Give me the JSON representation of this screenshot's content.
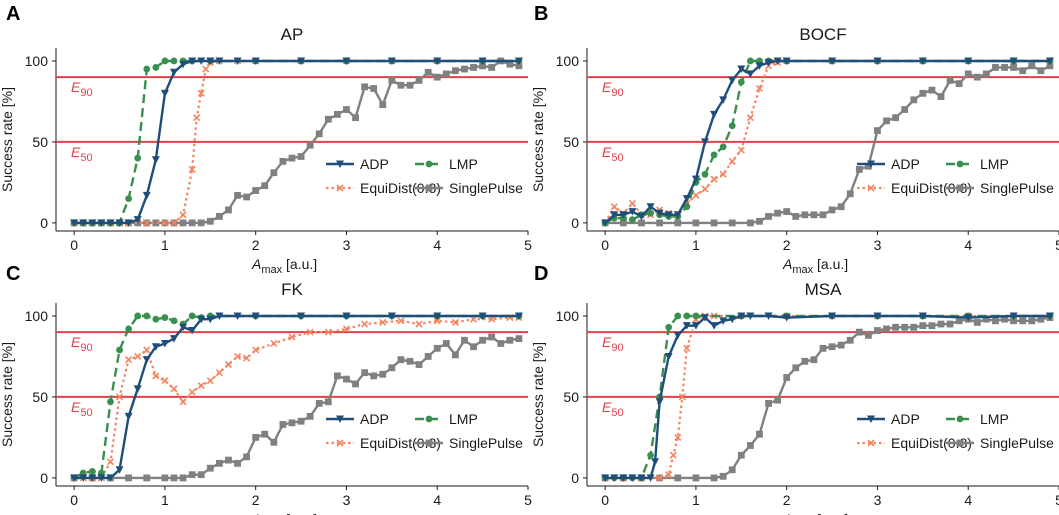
{
  "colors": {
    "ADP": "#1f4e79",
    "LMP": "#3a8f4f",
    "EquiDist": "#f4845f",
    "SinglePulse": "#808080",
    "reference": "#e3404a",
    "axis": "#1a1a1a"
  },
  "axes": {
    "xlabel_main": "A",
    "xlabel_sub": "max",
    "xlabel_unit": " [a.u.]",
    "ylabel": "Success rate [%]",
    "xticks": [
      "0",
      "1",
      "2",
      "3",
      "4",
      "5"
    ],
    "yticks": [
      "0",
      "50",
      "100"
    ]
  },
  "reference_lines": [
    {
      "main": "E",
      "sub": "90",
      "value": 90
    },
    {
      "main": "E",
      "sub": "50",
      "value": 50
    }
  ],
  "legend": [
    {
      "key": "ADP",
      "label": "ADP"
    },
    {
      "key": "LMP",
      "label": "LMP"
    },
    {
      "key": "EquiDist",
      "label": "EquiDist(0.8)"
    },
    {
      "key": "SinglePulse",
      "label": "SinglePulse"
    }
  ],
  "chart_data": [
    {
      "type": "line",
      "letter": "A",
      "title": "AP",
      "xlabel": "A_max [a.u.]",
      "ylabel": "Success rate [%]",
      "xlim": [
        -0.2,
        5.0
      ],
      "ylim": [
        -5,
        108
      ],
      "series": [
        {
          "name": "ADP",
          "x": [
            0,
            0.1,
            0.2,
            0.3,
            0.4,
            0.5,
            0.6,
            0.7,
            0.8,
            0.9,
            1.0,
            1.1,
            1.2,
            1.3,
            1.4,
            1.5,
            1.6,
            1.8,
            2.0,
            2.5,
            3.0,
            3.5,
            4.0,
            4.5,
            4.9
          ],
          "y": [
            0,
            0,
            0,
            0,
            0,
            0,
            0,
            2,
            17,
            39,
            80,
            93,
            98,
            100,
            100,
            100,
            100,
            100,
            100,
            100,
            100,
            100,
            100,
            100,
            100
          ]
        },
        {
          "name": "LMP",
          "x": [
            0,
            0.1,
            0.2,
            0.3,
            0.4,
            0.5,
            0.6,
            0.7,
            0.8,
            0.9,
            1.0,
            1.1,
            1.2,
            1.3,
            1.5,
            2.0,
            2.5,
            3.0,
            3.5,
            4.0,
            4.5,
            4.9
          ],
          "y": [
            0,
            0,
            0,
            0,
            0,
            0,
            15,
            40,
            95,
            96,
            100,
            100,
            100,
            100,
            100,
            100,
            100,
            100,
            100,
            100,
            100,
            100
          ]
        },
        {
          "name": "EquiDist(0.8)",
          "x": [
            0,
            0.2,
            0.4,
            0.6,
            0.8,
            1.0,
            1.1,
            1.2,
            1.3,
            1.35,
            1.4,
            1.45,
            1.5,
            1.6,
            1.8,
            2.0,
            2.5,
            3.0,
            3.5,
            4.0,
            4.5,
            4.9
          ],
          "y": [
            0,
            0,
            0,
            0,
            0,
            0,
            0,
            5,
            33,
            65,
            80,
            95,
            99,
            100,
            100,
            100,
            100,
            100,
            100,
            100,
            100,
            100
          ]
        },
        {
          "name": "SinglePulse",
          "x": [
            0,
            0.1,
            0.2,
            0.3,
            0.4,
            0.5,
            0.6,
            0.7,
            0.8,
            0.9,
            1.0,
            1.1,
            1.2,
            1.3,
            1.4,
            1.5,
            1.6,
            1.7,
            1.8,
            1.9,
            2.0,
            2.1,
            2.2,
            2.3,
            2.4,
            2.5,
            2.6,
            2.7,
            2.8,
            2.9,
            3.0,
            3.1,
            3.2,
            3.3,
            3.4,
            3.5,
            3.6,
            3.7,
            3.8,
            3.9,
            4.0,
            4.1,
            4.2,
            4.3,
            4.4,
            4.5,
            4.6,
            4.7,
            4.8,
            4.9
          ],
          "y": [
            0,
            0,
            0,
            0,
            0,
            0,
            0,
            0,
            0,
            0,
            0,
            0,
            0,
            0,
            0,
            1,
            4,
            8,
            17,
            16,
            20,
            23,
            31,
            38,
            40,
            41,
            48,
            55,
            64,
            67,
            70,
            65,
            84,
            83,
            73,
            88,
            85,
            85,
            88,
            93,
            90,
            92,
            94,
            95,
            96,
            97,
            96,
            100,
            98,
            97
          ]
        }
      ]
    },
    {
      "type": "line",
      "letter": "B",
      "title": "BOCF",
      "xlabel": "A_max [a.u.]",
      "ylabel": "Success rate [%]",
      "xlim": [
        -0.2,
        5.0
      ],
      "ylim": [
        -5,
        108
      ],
      "series": [
        {
          "name": "ADP",
          "x": [
            0,
            0.1,
            0.2,
            0.3,
            0.4,
            0.5,
            0.6,
            0.7,
            0.8,
            0.9,
            1.0,
            1.1,
            1.2,
            1.3,
            1.4,
            1.5,
            1.6,
            1.7,
            1.8,
            1.9,
            2.0,
            2.5,
            3.0,
            3.5,
            4.0,
            4.5,
            4.9
          ],
          "y": [
            0,
            5,
            5,
            7,
            4,
            10,
            6,
            5,
            5,
            15,
            27,
            50,
            67,
            76,
            88,
            95,
            92,
            97,
            99,
            100,
            100,
            100,
            100,
            100,
            100,
            100,
            100
          ]
        },
        {
          "name": "LMP",
          "x": [
            0,
            0.1,
            0.2,
            0.3,
            0.4,
            0.5,
            0.6,
            0.7,
            0.8,
            0.9,
            1.0,
            1.1,
            1.2,
            1.3,
            1.4,
            1.5,
            1.6,
            1.7,
            1.8,
            2.0,
            2.5,
            3.0,
            3.5,
            4.0,
            4.5,
            4.9
          ],
          "y": [
            0,
            3,
            3,
            2,
            5,
            6,
            5,
            4,
            4,
            10,
            25,
            30,
            42,
            47,
            60,
            87,
            100,
            100,
            100,
            100,
            100,
            100,
            100,
            100,
            100,
            100
          ]
        },
        {
          "name": "EquiDist(0.8)",
          "x": [
            0,
            0.1,
            0.2,
            0.3,
            0.4,
            0.5,
            0.6,
            0.7,
            0.8,
            0.9,
            1.0,
            1.1,
            1.2,
            1.3,
            1.4,
            1.5,
            1.6,
            1.7,
            1.8,
            1.9,
            2.0,
            2.5,
            3.0,
            3.5,
            4.0,
            4.5,
            4.9
          ],
          "y": [
            0,
            10,
            6,
            12,
            5,
            5,
            8,
            6,
            5,
            12,
            17,
            21,
            27,
            30,
            38,
            45,
            65,
            83,
            97,
            99,
            100,
            100,
            100,
            100,
            100,
            100,
            100
          ]
        },
        {
          "name": "SinglePulse",
          "x": [
            0,
            0.2,
            0.4,
            0.6,
            0.8,
            1.0,
            1.2,
            1.4,
            1.6,
            1.7,
            1.8,
            1.9,
            2.0,
            2.1,
            2.2,
            2.3,
            2.4,
            2.5,
            2.6,
            2.7,
            2.8,
            2.9,
            3.0,
            3.1,
            3.2,
            3.3,
            3.4,
            3.5,
            3.6,
            3.7,
            3.8,
            3.9,
            4.0,
            4.1,
            4.2,
            4.3,
            4.4,
            4.5,
            4.6,
            4.7,
            4.8,
            4.9
          ],
          "y": [
            0,
            0,
            0,
            0,
            0,
            0,
            0,
            0,
            0,
            1,
            4,
            6,
            7,
            4,
            5,
            5,
            5,
            8,
            10,
            18,
            33,
            35,
            57,
            63,
            65,
            70,
            76,
            80,
            82,
            78,
            88,
            86,
            92,
            90,
            92,
            96,
            96,
            96,
            94,
            97,
            94,
            97
          ]
        }
      ]
    },
    {
      "type": "line",
      "letter": "C",
      "title": "FK",
      "xlabel": "A_max [a.u.]",
      "ylabel": "Success rate [%]",
      "xlim": [
        -0.2,
        5.0
      ],
      "ylim": [
        -5,
        108
      ],
      "series": [
        {
          "name": "ADP",
          "x": [
            0,
            0.1,
            0.2,
            0.3,
            0.4,
            0.5,
            0.6,
            0.7,
            0.8,
            0.9,
            1.0,
            1.1,
            1.2,
            1.3,
            1.4,
            1.5,
            1.6,
            1.8,
            2.0,
            2.5,
            3.0,
            3.5,
            4.0,
            4.5,
            4.9
          ],
          "y": [
            0,
            0,
            0,
            0,
            0,
            5,
            38,
            55,
            73,
            81,
            83,
            86,
            93,
            91,
            98,
            98,
            100,
            100,
            100,
            100,
            100,
            100,
            100,
            100,
            100
          ]
        },
        {
          "name": "LMP",
          "x": [
            0,
            0.1,
            0.2,
            0.3,
            0.4,
            0.5,
            0.6,
            0.7,
            0.8,
            0.9,
            1.0,
            1.1,
            1.2,
            1.3,
            1.4,
            1.5,
            2.0,
            2.5,
            3.0,
            3.5,
            4.0,
            4.5,
            4.9
          ],
          "y": [
            0,
            3,
            4,
            3,
            47,
            79,
            92,
            100,
            100,
            98,
            99,
            97,
            95,
            100,
            99,
            100,
            100,
            100,
            100,
            100,
            100,
            100,
            100
          ]
        },
        {
          "name": "EquiDist(0.8)",
          "x": [
            0,
            0.1,
            0.2,
            0.3,
            0.4,
            0.5,
            0.6,
            0.7,
            0.8,
            0.9,
            1.0,
            1.1,
            1.2,
            1.3,
            1.4,
            1.5,
            1.6,
            1.7,
            1.8,
            1.9,
            2.0,
            2.2,
            2.4,
            2.6,
            2.8,
            3.0,
            3.2,
            3.4,
            3.6,
            3.8,
            4.0,
            4.2,
            4.4,
            4.6,
            4.8,
            4.9
          ],
          "y": [
            0,
            0,
            0,
            0,
            10,
            50,
            73,
            75,
            79,
            63,
            60,
            55,
            47,
            53,
            57,
            60,
            65,
            70,
            75,
            74,
            79,
            83,
            87,
            90,
            90,
            92,
            95,
            96,
            97,
            95,
            97,
            96,
            98,
            98,
            99,
            99
          ]
        },
        {
          "name": "SinglePulse",
          "x": [
            0,
            0.2,
            0.4,
            0.6,
            0.8,
            1.0,
            1.1,
            1.2,
            1.3,
            1.4,
            1.5,
            1.6,
            1.7,
            1.8,
            1.9,
            2.0,
            2.1,
            2.2,
            2.3,
            2.4,
            2.5,
            2.6,
            2.7,
            2.8,
            2.9,
            3.0,
            3.1,
            3.2,
            3.3,
            3.4,
            3.5,
            3.6,
            3.7,
            3.8,
            3.9,
            4.0,
            4.1,
            4.2,
            4.3,
            4.4,
            4.5,
            4.6,
            4.7,
            4.8,
            4.9
          ],
          "y": [
            0,
            0,
            0,
            0,
            0,
            0,
            0,
            0,
            2,
            2,
            6,
            9,
            11,
            9,
            13,
            25,
            27,
            22,
            33,
            34,
            35,
            38,
            46,
            47,
            63,
            61,
            58,
            65,
            63,
            64,
            68,
            73,
            72,
            70,
            75,
            80,
            83,
            76,
            85,
            81,
            85,
            87,
            83,
            85,
            86
          ]
        }
      ]
    },
    {
      "type": "line",
      "letter": "D",
      "title": "MSA",
      "xlabel": "A_max [a.u.]",
      "ylabel": "Success rate [%]",
      "xlim": [
        -0.2,
        5.0
      ],
      "ylim": [
        -5,
        108
      ],
      "series": [
        {
          "name": "ADP",
          "x": [
            0,
            0.1,
            0.2,
            0.3,
            0.4,
            0.5,
            0.55,
            0.6,
            0.7,
            0.8,
            0.9,
            1.0,
            1.1,
            1.2,
            1.3,
            1.4,
            1.5,
            1.6,
            1.8,
            2.0,
            2.5,
            3.0,
            3.5,
            4.0,
            4.5,
            4.9
          ],
          "y": [
            0,
            0,
            0,
            0,
            0,
            0,
            10,
            47,
            75,
            88,
            94,
            94,
            99,
            94,
            97,
            98,
            100,
            100,
            100,
            99,
            100,
            100,
            100,
            99,
            100,
            100
          ]
        },
        {
          "name": "LMP",
          "x": [
            0,
            0.1,
            0.2,
            0.3,
            0.4,
            0.5,
            0.6,
            0.7,
            0.8,
            0.9,
            1.0,
            1.5,
            2.0,
            2.5,
            3.0,
            3.5,
            4.0,
            4.5,
            4.9
          ],
          "y": [
            0,
            0,
            0,
            0,
            0,
            14,
            50,
            93,
            100,
            100,
            100,
            100,
            100,
            100,
            100,
            100,
            100,
            100,
            100
          ]
        },
        {
          "name": "EquiDist(0.8)",
          "x": [
            0,
            0.2,
            0.4,
            0.6,
            0.7,
            0.75,
            0.8,
            0.85,
            0.9,
            1.0,
            1.1,
            1.2,
            1.5,
            2.0,
            2.5,
            3.0,
            3.5,
            4.0,
            4.5,
            4.9
          ],
          "y": [
            0,
            0,
            0,
            0,
            2,
            14,
            25,
            50,
            80,
            98,
            100,
            100,
            100,
            100,
            100,
            100,
            100,
            100,
            100,
            100
          ]
        },
        {
          "name": "SinglePulse",
          "x": [
            0,
            0.2,
            0.4,
            0.6,
            0.8,
            1.0,
            1.2,
            1.3,
            1.4,
            1.5,
            1.6,
            1.7,
            1.8,
            1.9,
            2.0,
            2.1,
            2.2,
            2.3,
            2.4,
            2.5,
            2.6,
            2.7,
            2.8,
            2.9,
            3.0,
            3.1,
            3.2,
            3.3,
            3.4,
            3.5,
            3.6,
            3.7,
            3.8,
            3.9,
            4.0,
            4.1,
            4.2,
            4.3,
            4.4,
            4.5,
            4.6,
            4.7,
            4.8,
            4.9
          ],
          "y": [
            0,
            0,
            0,
            0,
            0,
            0,
            0,
            1,
            5,
            14,
            20,
            27,
            46,
            48,
            62,
            68,
            72,
            73,
            80,
            81,
            82,
            85,
            90,
            88,
            91,
            92,
            93,
            93,
            93,
            94,
            94,
            95,
            95,
            97,
            98,
            96,
            98,
            97,
            98,
            97,
            97,
            97,
            98,
            99
          ]
        }
      ]
    }
  ]
}
